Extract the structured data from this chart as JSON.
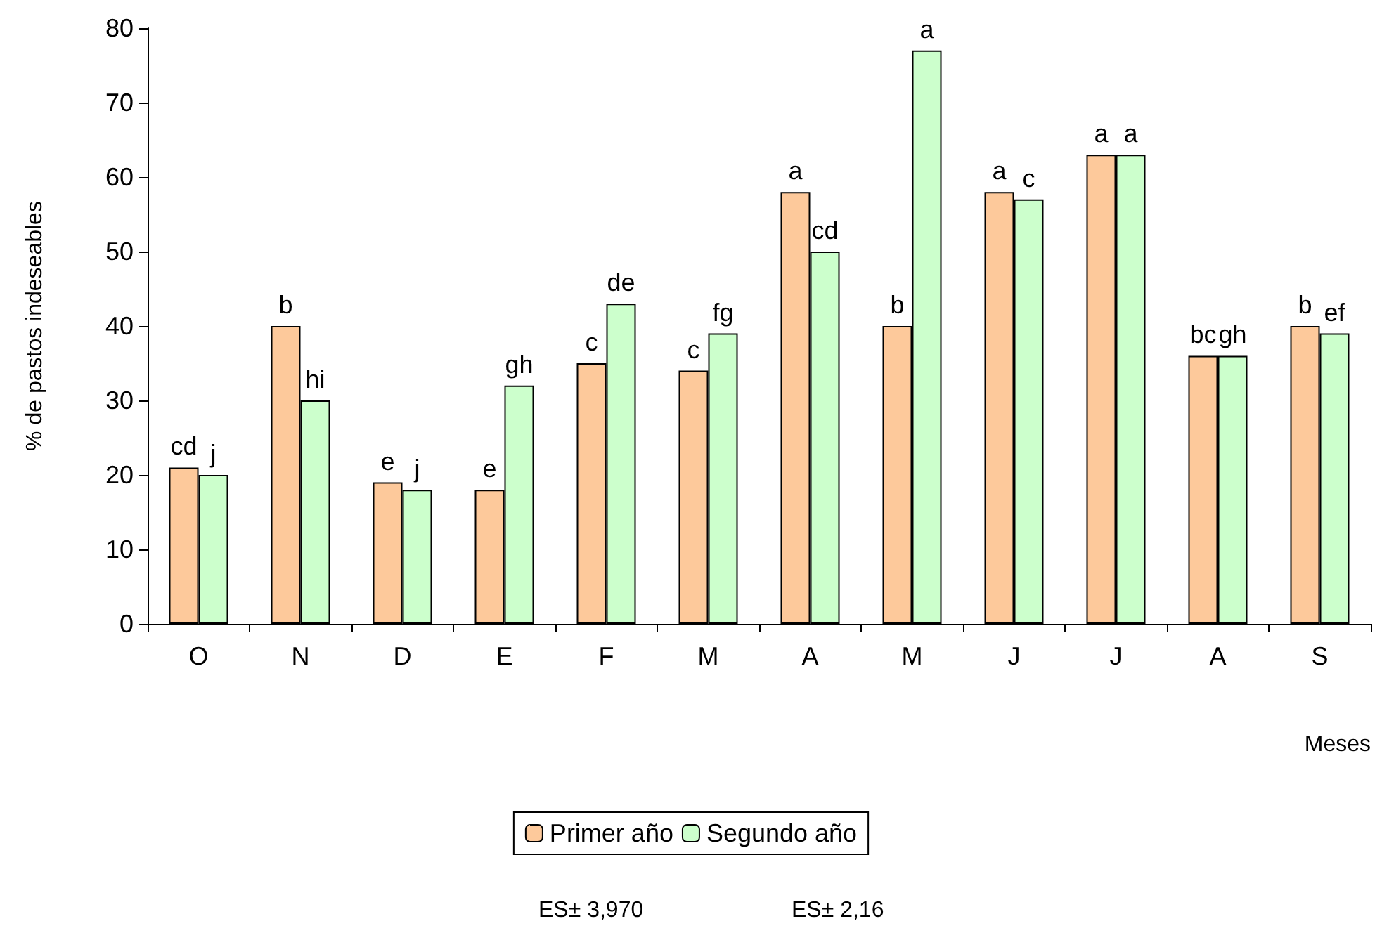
{
  "chart_data": {
    "type": "bar",
    "xlabel": "Meses",
    "ylabel": "% de pastos indeseables",
    "categories": [
      "O",
      "N",
      "D",
      "E",
      "F",
      "M",
      "A",
      "M",
      "J",
      "J",
      "A",
      "S"
    ],
    "series": [
      {
        "name": "Primer año",
        "color": "#fdc99b",
        "values": [
          21,
          40,
          19,
          18,
          35,
          34,
          58,
          40,
          58,
          63,
          36,
          40
        ],
        "value_labels": [
          "cd",
          "b",
          "e",
          "e",
          "c",
          "c",
          "a",
          "b",
          "a",
          "a",
          "bc",
          "b"
        ]
      },
      {
        "name": "Segundo año",
        "color": "#ccffcc",
        "values": [
          20,
          30,
          18,
          32,
          43,
          39,
          50,
          77,
          57,
          63,
          36,
          39
        ],
        "value_labels": [
          "j",
          "hi",
          "j",
          "gh",
          "de",
          "fg",
          "cd",
          "a",
          "c",
          "a",
          "gh",
          "ef"
        ]
      }
    ],
    "ylim": [
      0,
      80
    ],
    "yticks": [
      0,
      10,
      20,
      30,
      40,
      50,
      60,
      70,
      80
    ],
    "grid": false,
    "legend": "bottom",
    "annotations": [
      "ES± 3,970",
      "ES± 2,16"
    ]
  }
}
